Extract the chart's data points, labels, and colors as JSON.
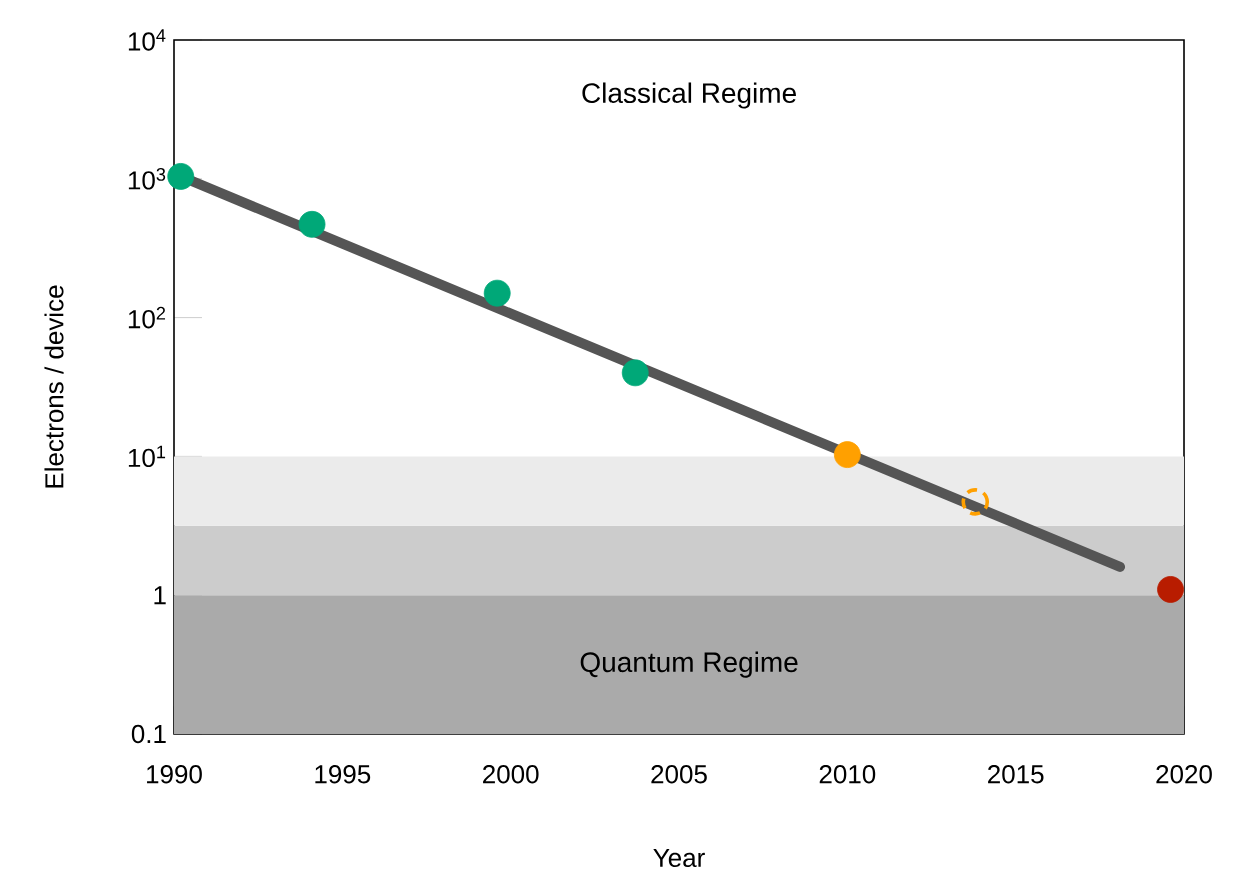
{
  "chart_data": {
    "type": "scatter",
    "xlabel": "Year",
    "ylabel": "Electrons / device",
    "log": "y",
    "xlim": [
      1990,
      2020
    ],
    "xticks": [
      1990,
      1995,
      2000,
      2005,
      2010,
      2015,
      2020
    ],
    "ylim": [
      0.1,
      10000
    ],
    "yticks": [
      0.1,
      1,
      {
        "value": 10,
        "label": "10$^{1}$"
      },
      {
        "value": 100,
        "label": "10$^{2}$"
      },
      {
        "value": 1000,
        "label": "10$^{3}$"
      },
      {
        "value": 10000,
        "label": "10$^{4}$"
      }
    ],
    "bands": [
      {
        "axis": "y",
        "from": 0.1,
        "to": 1,
        "label": "Quantum Regime",
        "color": "#aaaaaa"
      },
      {
        "axis": "y",
        "from": 1,
        "to": 3.16,
        "color": "#cccccc"
      },
      {
        "axis": "y",
        "from": 3.16,
        "to": 10,
        "color": "#ebebeb"
      }
    ],
    "annotations": [
      "Classical Regime"
    ],
    "series": [
      {
        "type": "line",
        "color": "#555555",
        "x": [
          1990.2,
          2018.1
        ],
        "values": [
          1040,
          1.6
        ],
        "marker": "none"
      },
      {
        "color": "#00a878",
        "x": [
          1990.2,
          1994.1,
          1999.6,
          2003.7
        ],
        "values": [
          1040,
          470,
          150,
          40
        ],
        "marker": "circle"
      },
      {
        "color": "#ffa000",
        "x": [
          2010.0
        ],
        "values": [
          10.3
        ],
        "marker": "circle"
      },
      {
        "color": "#ffa000",
        "x": [
          2013.8
        ],
        "values": [
          4.7
        ],
        "marker": "circle",
        "line_style": "dashed"
      },
      {
        "color": "#b81c00",
        "x": [
          2019.6
        ],
        "values": [
          1.1
        ],
        "marker": "circle"
      }
    ]
  }
}
